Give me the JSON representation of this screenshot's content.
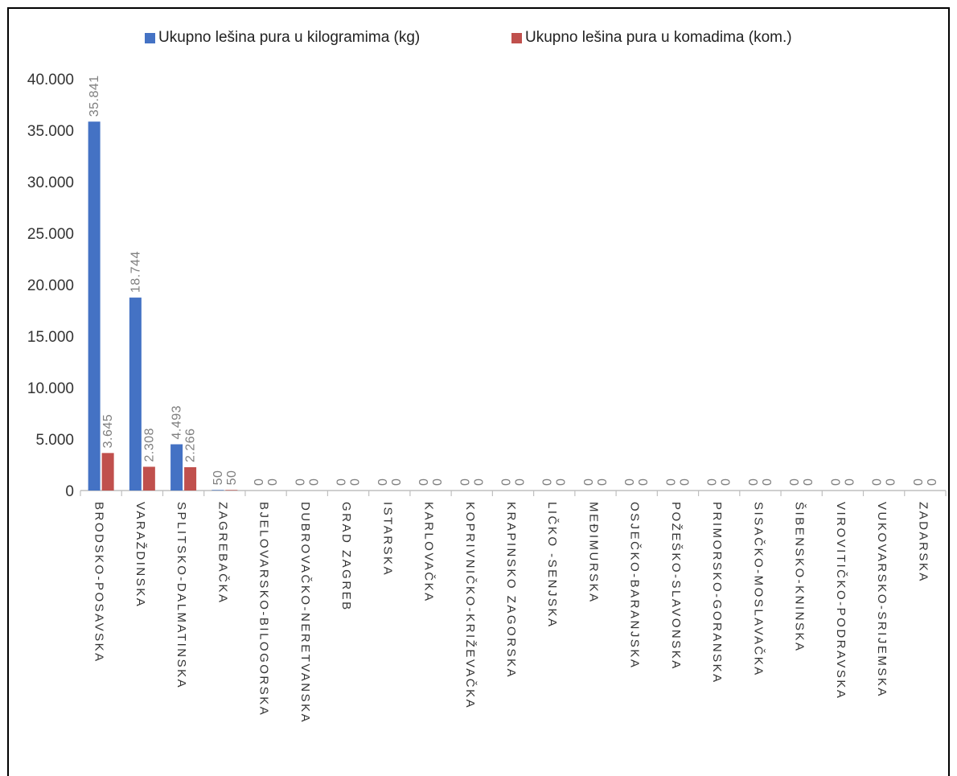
{
  "chart_data": {
    "type": "bar",
    "title": "",
    "xlabel": "",
    "ylabel": "",
    "ylim": [
      0,
      40000
    ],
    "yticks": [
      0,
      5000,
      10000,
      15000,
      20000,
      25000,
      30000,
      35000,
      40000
    ],
    "ytick_labels": [
      "0",
      "5.000",
      "10.000",
      "15.000",
      "20.000",
      "25.000",
      "30.000",
      "35.000",
      "40.000"
    ],
    "grid": false,
    "legend_position": "top",
    "categories": [
      "BRODSKO-POSAVSKA",
      "VARAŽDINSKA",
      "SPLITSKO-DALMATINSKA",
      "ZAGREBAČKA",
      "BJELOVARSKO-BILOGORSKA",
      "DUBROVAČKO-NERETVANSKA",
      "GRAD ZAGREB",
      "ISTARSKA",
      "KARLOVAČKA",
      "KOPRIVNIČKO-KRIŽEVAČKA",
      "KRAPINSKO ZAGORSKA",
      "LIČKO -SENJSKA",
      "MEĐIMURSKA",
      "OSJEČKO-BARANJSKA",
      "POŽEŠKO-SLAVONSKA",
      "PRIMORSKO-GORANSKA",
      "SISAČKO-MOSLAVAČKA",
      "ŠIBENSKO-KNINSKA",
      "VIROVITIČKO-PODRAVSKA",
      "VUKOVARSKO-SRIJEMSKA",
      "ZADARSKA"
    ],
    "series": [
      {
        "name": "Ukupno lešina pura u kilogramima (kg)",
        "color": "#4472C4",
        "values": [
          35841,
          18744,
          4493,
          50,
          0,
          0,
          0,
          0,
          0,
          0,
          0,
          0,
          0,
          0,
          0,
          0,
          0,
          0,
          0,
          0,
          0
        ],
        "labels": [
          "35.841",
          "18.744",
          "4.493",
          "50",
          "0",
          "0",
          "0",
          "0",
          "0",
          "0",
          "0",
          "0",
          "0",
          "0",
          "0",
          "0",
          "0",
          "0",
          "0",
          "0",
          "0"
        ]
      },
      {
        "name": "Ukupno lešina pura u komadima (kom.)",
        "color": "#C0504D",
        "values": [
          3645,
          2308,
          2266,
          50,
          0,
          0,
          0,
          0,
          0,
          0,
          0,
          0,
          0,
          0,
          0,
          0,
          0,
          0,
          0,
          0,
          0
        ],
        "labels": [
          "3.645",
          "2.308",
          "2.266",
          "50",
          "0",
          "0",
          "0",
          "0",
          "0",
          "0",
          "0",
          "0",
          "0",
          "0",
          "0",
          "0",
          "0",
          "0",
          "0",
          "0",
          "0"
        ]
      }
    ]
  }
}
